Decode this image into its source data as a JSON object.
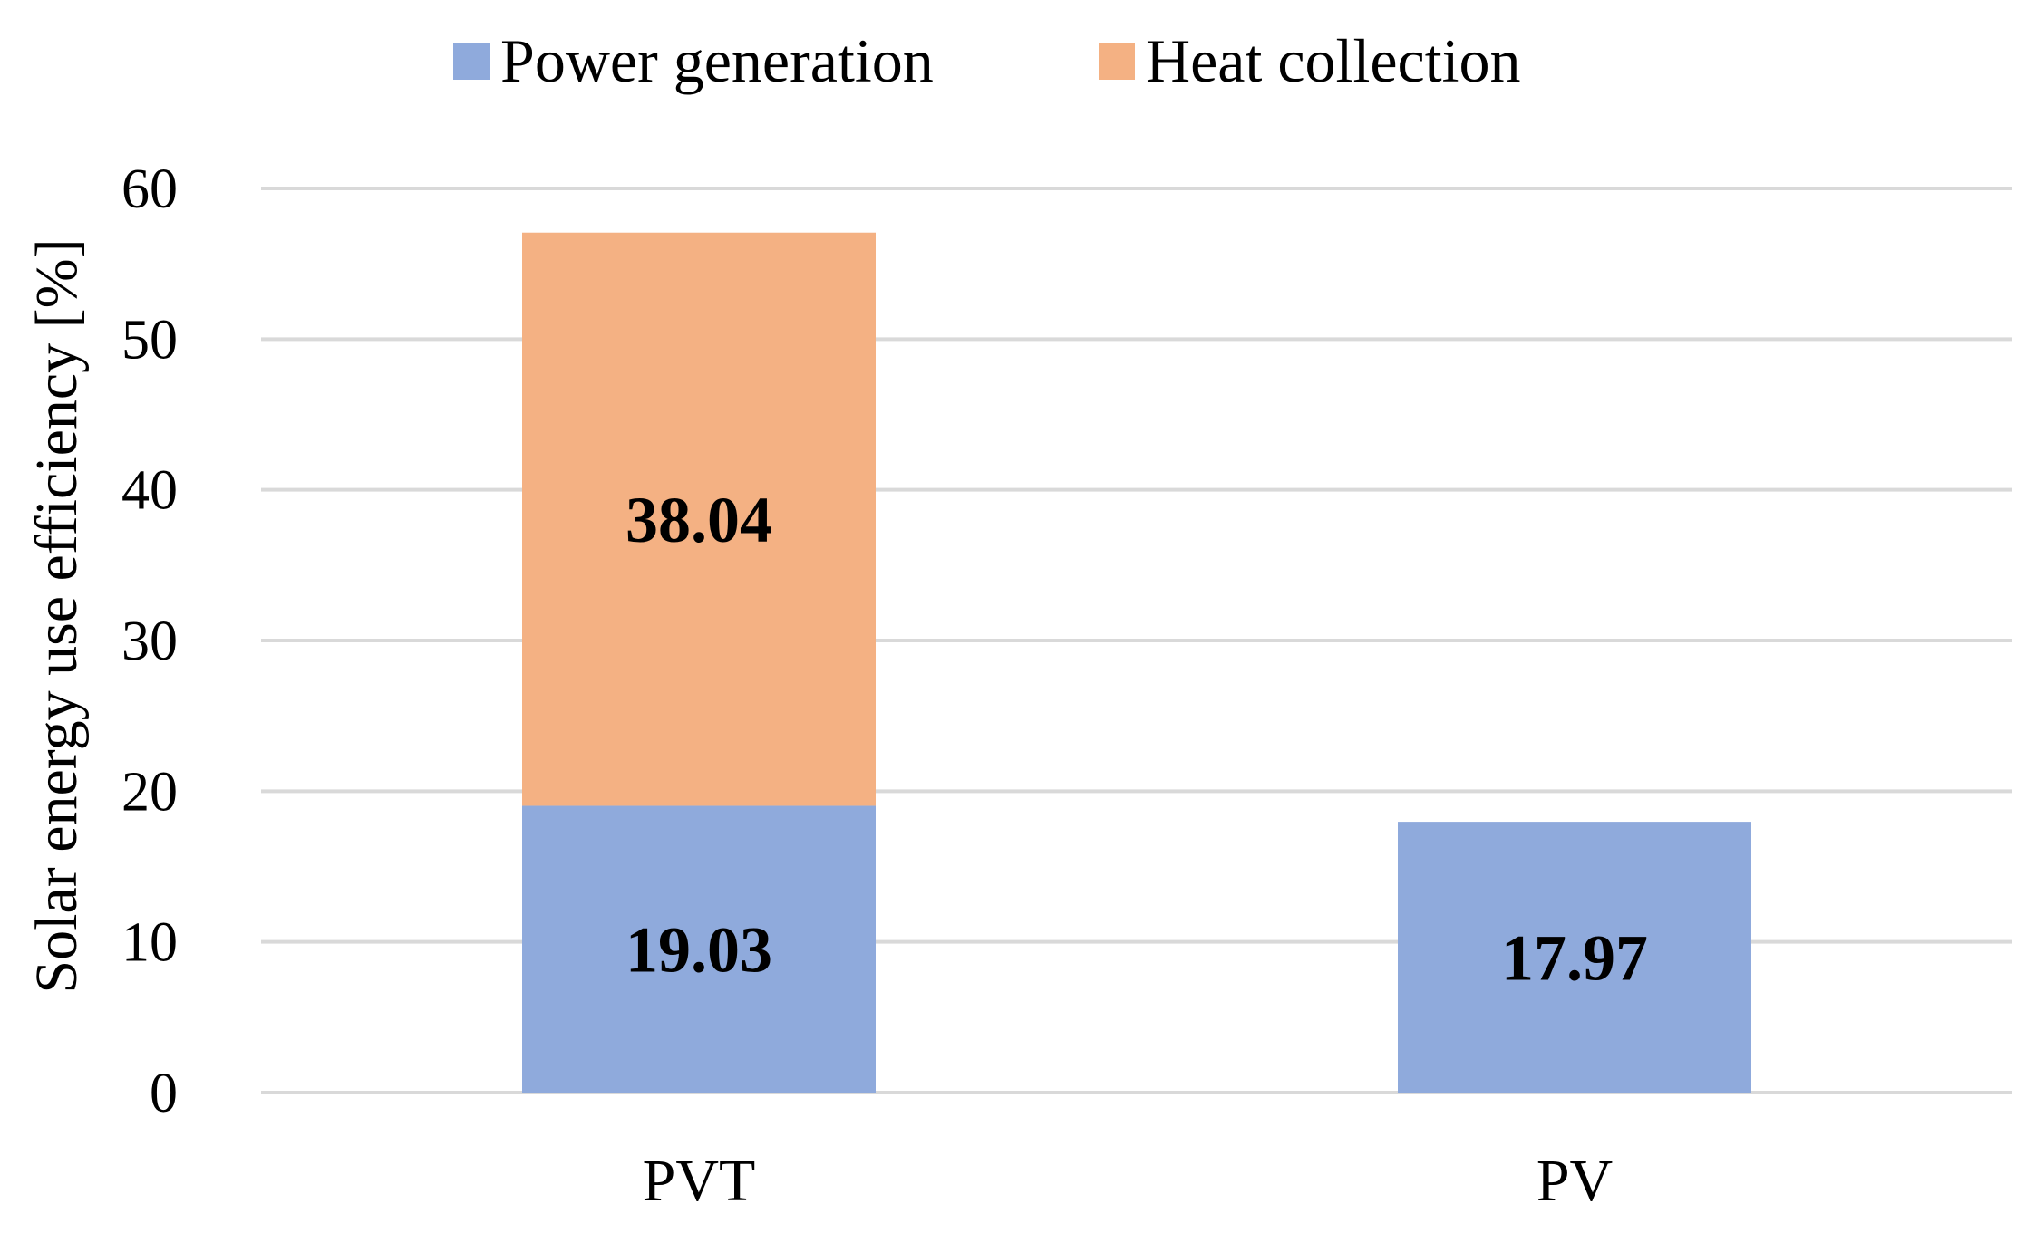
{
  "chart_data": {
    "type": "bar",
    "stacked": true,
    "title": "",
    "xlabel": "",
    "ylabel": "Solar energy use efficiency  [%]",
    "ylim": [
      0,
      60
    ],
    "yticks": [
      0,
      10,
      20,
      30,
      40,
      50,
      60
    ],
    "categories": [
      "PVT",
      "PV"
    ],
    "series": [
      {
        "name": "Power generation",
        "color": "#8FAADC",
        "values": [
          19.03,
          17.97
        ],
        "labels": [
          "19.03",
          "17.97"
        ]
      },
      {
        "name": "Heat collection",
        "color": "#F4B183",
        "values": [
          38.04,
          null
        ],
        "labels": [
          "38.04",
          null
        ]
      }
    ],
    "grid": true,
    "legend": "top-center"
  }
}
